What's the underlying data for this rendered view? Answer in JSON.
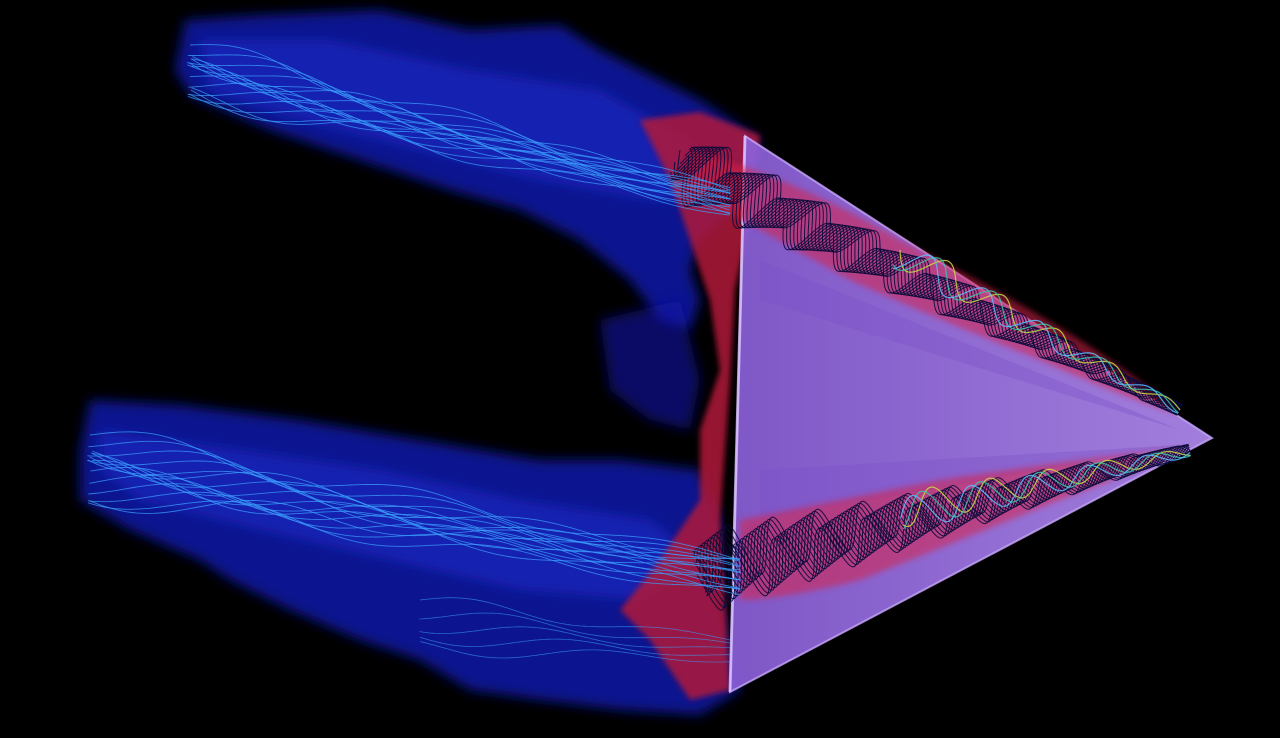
{
  "scene": {
    "background": "#000000",
    "wake_color": "#0a12a0",
    "wake_glow": "#1a2ad0",
    "vortex_core_color": "#d8244a",
    "wing_color": "#9d6ae0",
    "wing_edge_color": "#c9a8ff",
    "streamline_wake_color": "#3ba0ff",
    "streamline_core_color": "#0a0a3a",
    "streamline_tip_colors": [
      "#c8e040",
      "#38c8a8",
      "#5ac0ff"
    ]
  }
}
